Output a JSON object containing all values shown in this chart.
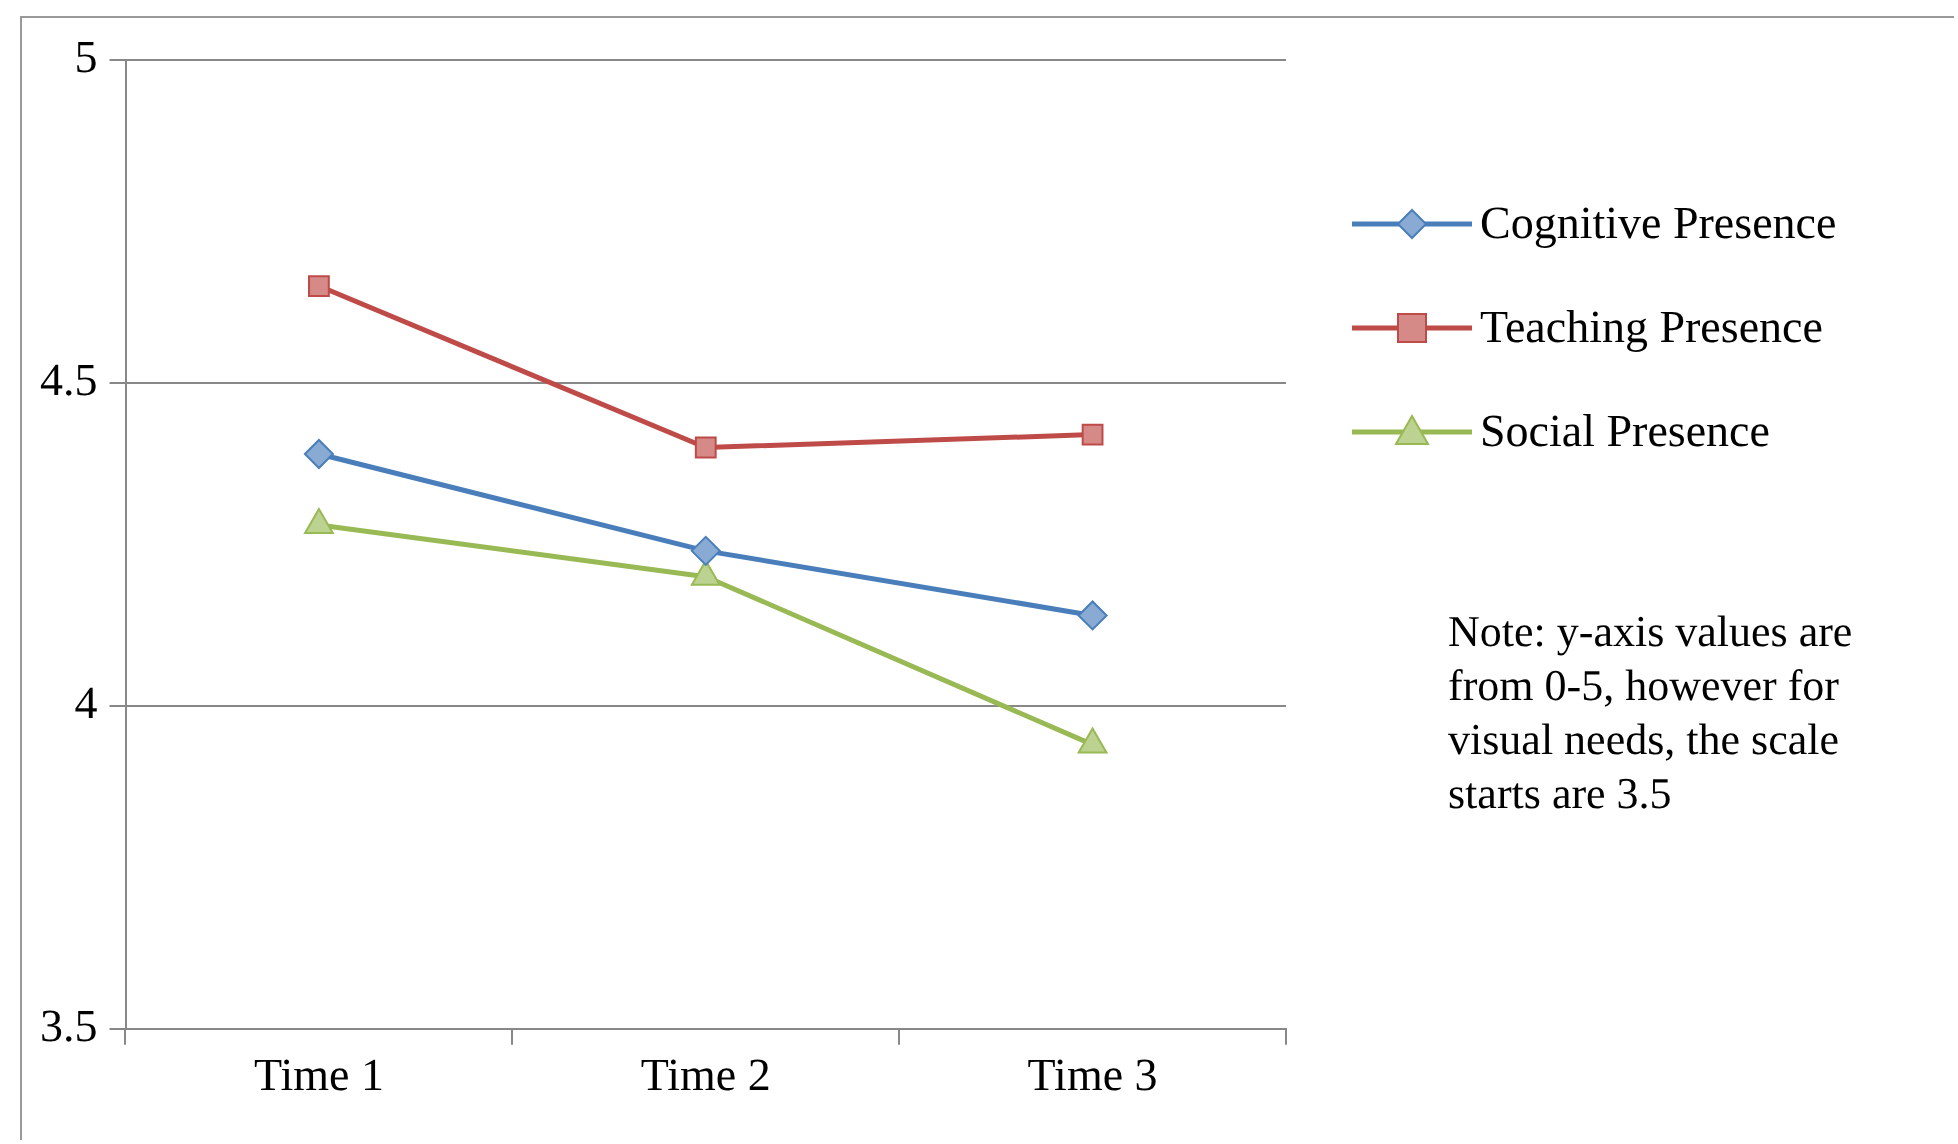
{
  "chart_data": {
    "type": "line",
    "categories": [
      "Time 1",
      "Time 2",
      "Time 3"
    ],
    "series": [
      {
        "name": "Cognitive Presence",
        "color": "#4a7ebb",
        "marker": "diamond",
        "values": [
          4.39,
          4.24,
          4.14
        ]
      },
      {
        "name": "Teaching Presence",
        "color": "#be4b48",
        "marker": "square",
        "values": [
          4.65,
          4.4,
          4.42
        ]
      },
      {
        "name": "Social Presence",
        "color": "#98b954",
        "marker": "triangle",
        "values": [
          4.28,
          4.2,
          3.94
        ]
      }
    ],
    "ylim": [
      3.5,
      5
    ],
    "yticks": [
      3.5,
      4,
      4.5,
      5
    ],
    "grid": "y",
    "legend": "right",
    "line_style": "solid",
    "annotations": [
      "Note: y-axis values are from 0-5, however for visual needs, the scale starts are 3.5"
    ]
  }
}
